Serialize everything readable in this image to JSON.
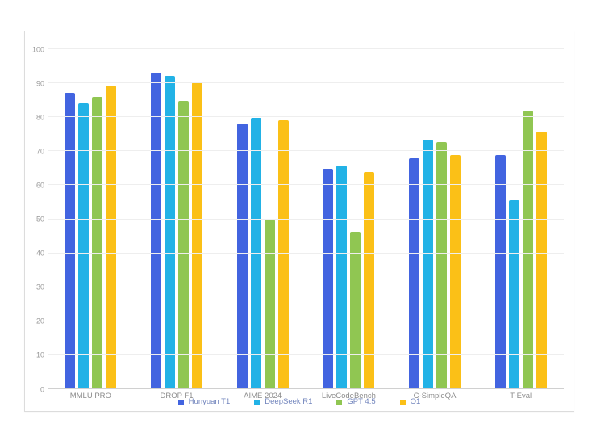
{
  "page": {
    "background_color": "#ffffff",
    "panel_border_color": "#dcdcdc"
  },
  "chart_data": {
    "type": "bar",
    "title": "",
    "categories": [
      "MMLU PRO",
      "DROP F1",
      "AIME 2024",
      "LiveCodeBench",
      "C-SimpleQA",
      "T-Eval"
    ],
    "series": [
      {
        "name": "Hunyuan T1",
        "color": "#4264e0",
        "values": [
          87.2,
          93.1,
          78.2,
          64.9,
          67.9,
          68.9
        ]
      },
      {
        "name": "DeepSeek R1",
        "color": "#22b2e6",
        "values": [
          84.0,
          92.2,
          79.8,
          65.9,
          73.4,
          55.7
        ]
      },
      {
        "name": "GPT 4.5",
        "color": "#90c652",
        "values": [
          86.1,
          84.7,
          50.0,
          46.4,
          72.6,
          81.9
        ]
      },
      {
        "name": "O1",
        "color": "#fbc017",
        "values": [
          89.3,
          90.2,
          79.2,
          63.9,
          68.9,
          75.7
        ]
      }
    ],
    "xlabel": "",
    "ylabel": "",
    "ylim": [
      0,
      100
    ],
    "y_ticks": [
      0,
      10,
      20,
      30,
      40,
      50,
      60,
      70,
      80,
      90,
      100
    ],
    "grid": true,
    "gridline_color": "#eeeeee",
    "axis_line_color": "#d0d0d0",
    "tick_label_color": "#999999",
    "category_label_color": "#8c8c8c",
    "legend_position": "bottom",
    "legend_text_color": "#7285bd"
  }
}
